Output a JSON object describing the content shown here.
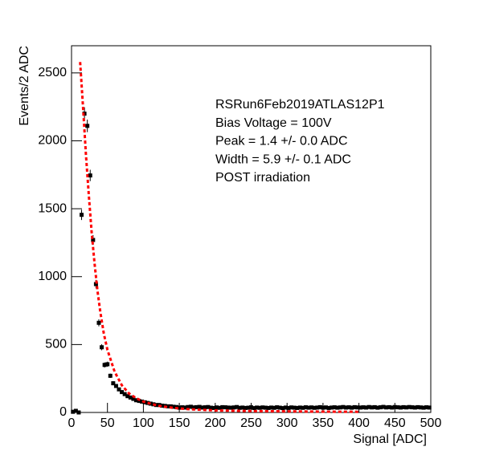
{
  "chart_data": {
    "type": "scatter",
    "xlabel": "Signal [ADC]",
    "ylabel": "Events/2 ADC",
    "annotations": [
      "RSRun6Feb2019ATLAS12P1",
      "Bias Voltage = 100V",
      "Peak = 1.4 +/- 0.0 ADC",
      "Width = 5.9 +/- 0.1 ADC",
      "POST irradiation"
    ],
    "xlim": [
      0,
      500
    ],
    "ylim": [
      0,
      2700
    ],
    "xticks": [
      0,
      50,
      100,
      150,
      200,
      250,
      300,
      350,
      400,
      450,
      500
    ],
    "yticks": [
      0,
      500,
      1000,
      1500,
      2000,
      2500
    ],
    "series": [
      {
        "color": "#000000",
        "x": [
          2,
          6,
          10,
          14,
          18,
          22,
          26,
          30,
          34,
          38,
          42,
          46,
          50,
          54,
          58,
          62,
          66,
          70,
          74,
          78,
          82,
          86,
          90,
          94,
          98,
          102,
          106,
          110,
          114,
          118,
          122,
          126,
          130,
          134,
          138,
          142,
          146,
          150,
          154,
          158,
          162,
          166,
          170,
          174,
          178,
          182,
          186,
          190,
          194,
          198,
          202,
          206,
          210,
          214,
          218,
          222,
          226,
          230,
          234,
          238,
          242,
          246,
          250,
          254,
          258,
          262,
          266,
          270,
          274,
          278,
          282,
          286,
          290,
          294,
          298,
          302,
          306,
          310,
          314,
          318,
          322,
          326,
          330,
          334,
          338,
          342,
          346,
          350,
          354,
          358,
          362,
          366,
          370,
          374,
          378,
          382,
          386,
          390,
          394,
          398,
          402,
          406,
          410,
          414,
          418,
          422,
          426,
          430,
          434,
          438,
          442,
          446,
          450,
          454,
          458,
          462,
          466,
          470,
          474,
          478,
          482,
          486,
          490,
          494,
          498
        ],
        "values": [
          5,
          12,
          0,
          1455,
          2200,
          2110,
          1745,
          1270,
          945,
          660,
          480,
          350,
          355,
          270,
          215,
          195,
          170,
          150,
          135,
          120,
          110,
          100,
          90,
          85,
          80,
          75,
          70,
          65,
          60,
          55,
          55,
          50,
          48,
          45,
          45,
          42,
          40,
          35,
          38,
          36,
          40,
          42,
          37,
          39,
          41,
          36,
          38,
          40,
          35,
          33,
          37,
          34,
          39,
          38,
          36,
          35,
          37,
          40,
          34,
          36,
          33,
          35,
          38,
          32,
          36,
          34,
          37,
          35,
          33,
          36,
          34,
          38,
          35,
          32,
          36,
          33,
          37,
          35,
          33,
          36,
          34,
          38,
          35,
          37,
          34,
          36,
          39,
          35,
          37,
          33,
          36,
          38,
          35,
          37,
          40,
          36,
          38,
          35,
          39,
          37,
          36,
          38,
          36,
          40,
          37,
          39,
          35,
          38,
          41,
          37,
          39,
          36,
          40,
          38,
          36,
          39,
          37,
          40,
          38,
          36,
          39,
          37,
          35,
          38,
          36
        ],
        "errors": [
          2,
          3,
          0,
          38,
          47,
          46,
          42,
          36,
          31,
          26,
          22,
          19,
          19,
          16,
          15,
          14,
          13,
          12,
          12,
          11,
          10.5,
          10,
          9.5,
          9,
          9,
          8.7,
          8.4,
          8,
          7.7,
          7.4,
          7.4,
          7.1,
          6.9,
          6.7,
          6.7,
          6.5,
          6.3,
          6,
          6,
          6,
          6,
          6,
          6,
          6,
          6,
          6,
          6,
          6,
          6,
          6,
          6,
          6,
          6,
          6,
          6,
          6,
          6,
          6,
          6,
          6,
          6,
          6,
          6,
          6,
          6,
          6,
          6,
          6,
          6,
          6,
          6,
          6,
          6,
          6,
          6,
          6,
          6,
          6,
          6,
          6,
          6,
          6,
          6,
          6,
          6,
          6,
          6,
          6,
          6,
          6,
          6,
          6,
          6,
          6,
          6,
          6,
          6,
          6,
          6,
          6,
          6,
          6,
          6,
          6,
          6,
          6,
          6,
          6,
          6,
          6,
          6,
          6,
          6,
          6,
          6,
          6,
          6,
          6,
          6,
          6,
          6,
          6,
          6,
          6,
          6
        ]
      },
      {
        "color": "#ff0000",
        "style": "dashed",
        "x": [
          12,
          16,
          20,
          24,
          28,
          32,
          36,
          40,
          45,
          50,
          60,
          70,
          80,
          90,
          100,
          120,
          140,
          160,
          200,
          250,
          300,
          350,
          400
        ],
        "values": [
          2580,
          2250,
          1900,
          1600,
          1330,
          1100,
          900,
          740,
          580,
          460,
          300,
          200,
          140,
          105,
          80,
          50,
          35,
          25,
          15,
          10,
          8,
          6,
          5
        ]
      }
    ]
  }
}
